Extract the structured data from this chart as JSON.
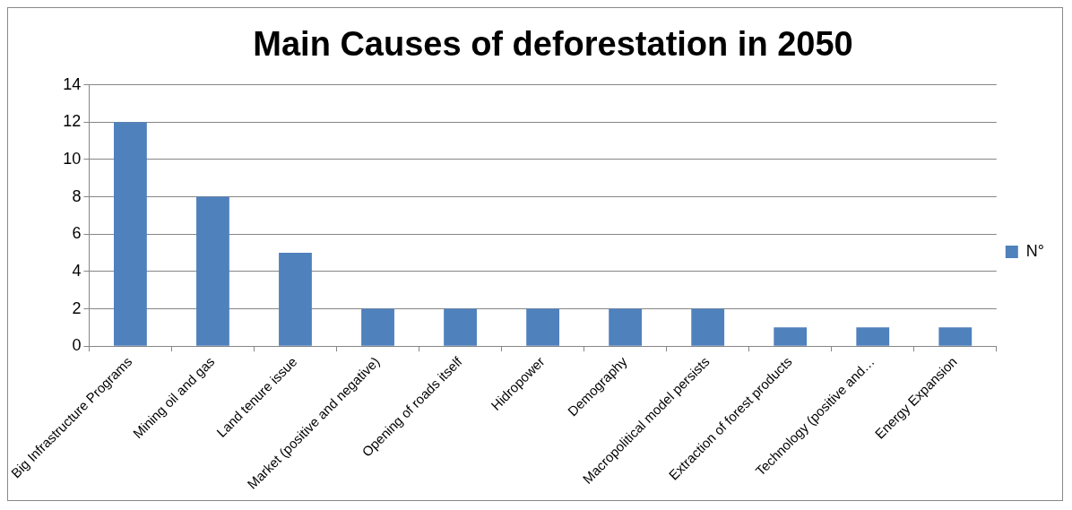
{
  "chart_data": {
    "type": "bar",
    "title": "Main Causes of deforestation in 2050",
    "categories": [
      "Big Infrastructure Programs",
      "Mining oil and gas",
      "Land tenure issue",
      "Market (positive and negative)",
      "Opening of roads itself",
      "Hidropower",
      "Demography",
      "Macropolitical model persists",
      "Extraction of forest products",
      "Technology (positive and…",
      "Energy Expansion"
    ],
    "series": [
      {
        "name": "N°",
        "color": "#4f81bd",
        "values": [
          12,
          8,
          5,
          2,
          2,
          2,
          2,
          2,
          1,
          1,
          1
        ]
      }
    ],
    "ylim": [
      0,
      14
    ],
    "yticks": [
      0,
      2,
      4,
      6,
      8,
      10,
      12,
      14
    ],
    "grid": "y",
    "legend": "right"
  }
}
